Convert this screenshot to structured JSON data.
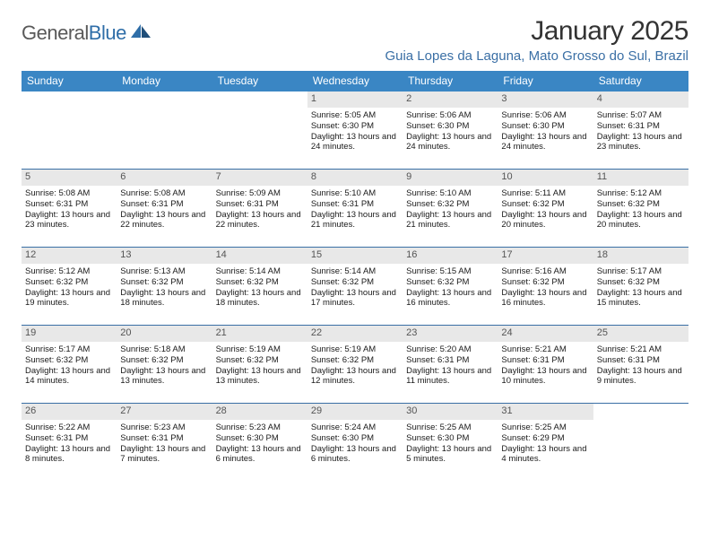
{
  "logo": {
    "word1": "General",
    "word2": "Blue"
  },
  "title": "January 2025",
  "subtitle": "Guia Lopes da Laguna, Mato Grosso do Sul, Brazil",
  "colors": {
    "header_bg": "#3a86c4",
    "accent": "#3a6fa5",
    "daynum_bg": "#e8e8e8",
    "text": "#1a1a1a"
  },
  "weekdays": [
    "Sunday",
    "Monday",
    "Tuesday",
    "Wednesday",
    "Thursday",
    "Friday",
    "Saturday"
  ],
  "weeks": [
    [
      null,
      null,
      null,
      {
        "n": "1",
        "sr": "5:05 AM",
        "ss": "6:30 PM",
        "dl": "13 hours and 24 minutes."
      },
      {
        "n": "2",
        "sr": "5:06 AM",
        "ss": "6:30 PM",
        "dl": "13 hours and 24 minutes."
      },
      {
        "n": "3",
        "sr": "5:06 AM",
        "ss": "6:30 PM",
        "dl": "13 hours and 24 minutes."
      },
      {
        "n": "4",
        "sr": "5:07 AM",
        "ss": "6:31 PM",
        "dl": "13 hours and 23 minutes."
      }
    ],
    [
      {
        "n": "5",
        "sr": "5:08 AM",
        "ss": "6:31 PM",
        "dl": "13 hours and 23 minutes."
      },
      {
        "n": "6",
        "sr": "5:08 AM",
        "ss": "6:31 PM",
        "dl": "13 hours and 22 minutes."
      },
      {
        "n": "7",
        "sr": "5:09 AM",
        "ss": "6:31 PM",
        "dl": "13 hours and 22 minutes."
      },
      {
        "n": "8",
        "sr": "5:10 AM",
        "ss": "6:31 PM",
        "dl": "13 hours and 21 minutes."
      },
      {
        "n": "9",
        "sr": "5:10 AM",
        "ss": "6:32 PM",
        "dl": "13 hours and 21 minutes."
      },
      {
        "n": "10",
        "sr": "5:11 AM",
        "ss": "6:32 PM",
        "dl": "13 hours and 20 minutes."
      },
      {
        "n": "11",
        "sr": "5:12 AM",
        "ss": "6:32 PM",
        "dl": "13 hours and 20 minutes."
      }
    ],
    [
      {
        "n": "12",
        "sr": "5:12 AM",
        "ss": "6:32 PM",
        "dl": "13 hours and 19 minutes."
      },
      {
        "n": "13",
        "sr": "5:13 AM",
        "ss": "6:32 PM",
        "dl": "13 hours and 18 minutes."
      },
      {
        "n": "14",
        "sr": "5:14 AM",
        "ss": "6:32 PM",
        "dl": "13 hours and 18 minutes."
      },
      {
        "n": "15",
        "sr": "5:14 AM",
        "ss": "6:32 PM",
        "dl": "13 hours and 17 minutes."
      },
      {
        "n": "16",
        "sr": "5:15 AM",
        "ss": "6:32 PM",
        "dl": "13 hours and 16 minutes."
      },
      {
        "n": "17",
        "sr": "5:16 AM",
        "ss": "6:32 PM",
        "dl": "13 hours and 16 minutes."
      },
      {
        "n": "18",
        "sr": "5:17 AM",
        "ss": "6:32 PM",
        "dl": "13 hours and 15 minutes."
      }
    ],
    [
      {
        "n": "19",
        "sr": "5:17 AM",
        "ss": "6:32 PM",
        "dl": "13 hours and 14 minutes."
      },
      {
        "n": "20",
        "sr": "5:18 AM",
        "ss": "6:32 PM",
        "dl": "13 hours and 13 minutes."
      },
      {
        "n": "21",
        "sr": "5:19 AM",
        "ss": "6:32 PM",
        "dl": "13 hours and 13 minutes."
      },
      {
        "n": "22",
        "sr": "5:19 AM",
        "ss": "6:32 PM",
        "dl": "13 hours and 12 minutes."
      },
      {
        "n": "23",
        "sr": "5:20 AM",
        "ss": "6:31 PM",
        "dl": "13 hours and 11 minutes."
      },
      {
        "n": "24",
        "sr": "5:21 AM",
        "ss": "6:31 PM",
        "dl": "13 hours and 10 minutes."
      },
      {
        "n": "25",
        "sr": "5:21 AM",
        "ss": "6:31 PM",
        "dl": "13 hours and 9 minutes."
      }
    ],
    [
      {
        "n": "26",
        "sr": "5:22 AM",
        "ss": "6:31 PM",
        "dl": "13 hours and 8 minutes."
      },
      {
        "n": "27",
        "sr": "5:23 AM",
        "ss": "6:31 PM",
        "dl": "13 hours and 7 minutes."
      },
      {
        "n": "28",
        "sr": "5:23 AM",
        "ss": "6:30 PM",
        "dl": "13 hours and 6 minutes."
      },
      {
        "n": "29",
        "sr": "5:24 AM",
        "ss": "6:30 PM",
        "dl": "13 hours and 6 minutes."
      },
      {
        "n": "30",
        "sr": "5:25 AM",
        "ss": "6:30 PM",
        "dl": "13 hours and 5 minutes."
      },
      {
        "n": "31",
        "sr": "5:25 AM",
        "ss": "6:29 PM",
        "dl": "13 hours and 4 minutes."
      },
      null
    ]
  ],
  "labels": {
    "sunrise": "Sunrise:",
    "sunset": "Sunset:",
    "daylight": "Daylight:"
  }
}
